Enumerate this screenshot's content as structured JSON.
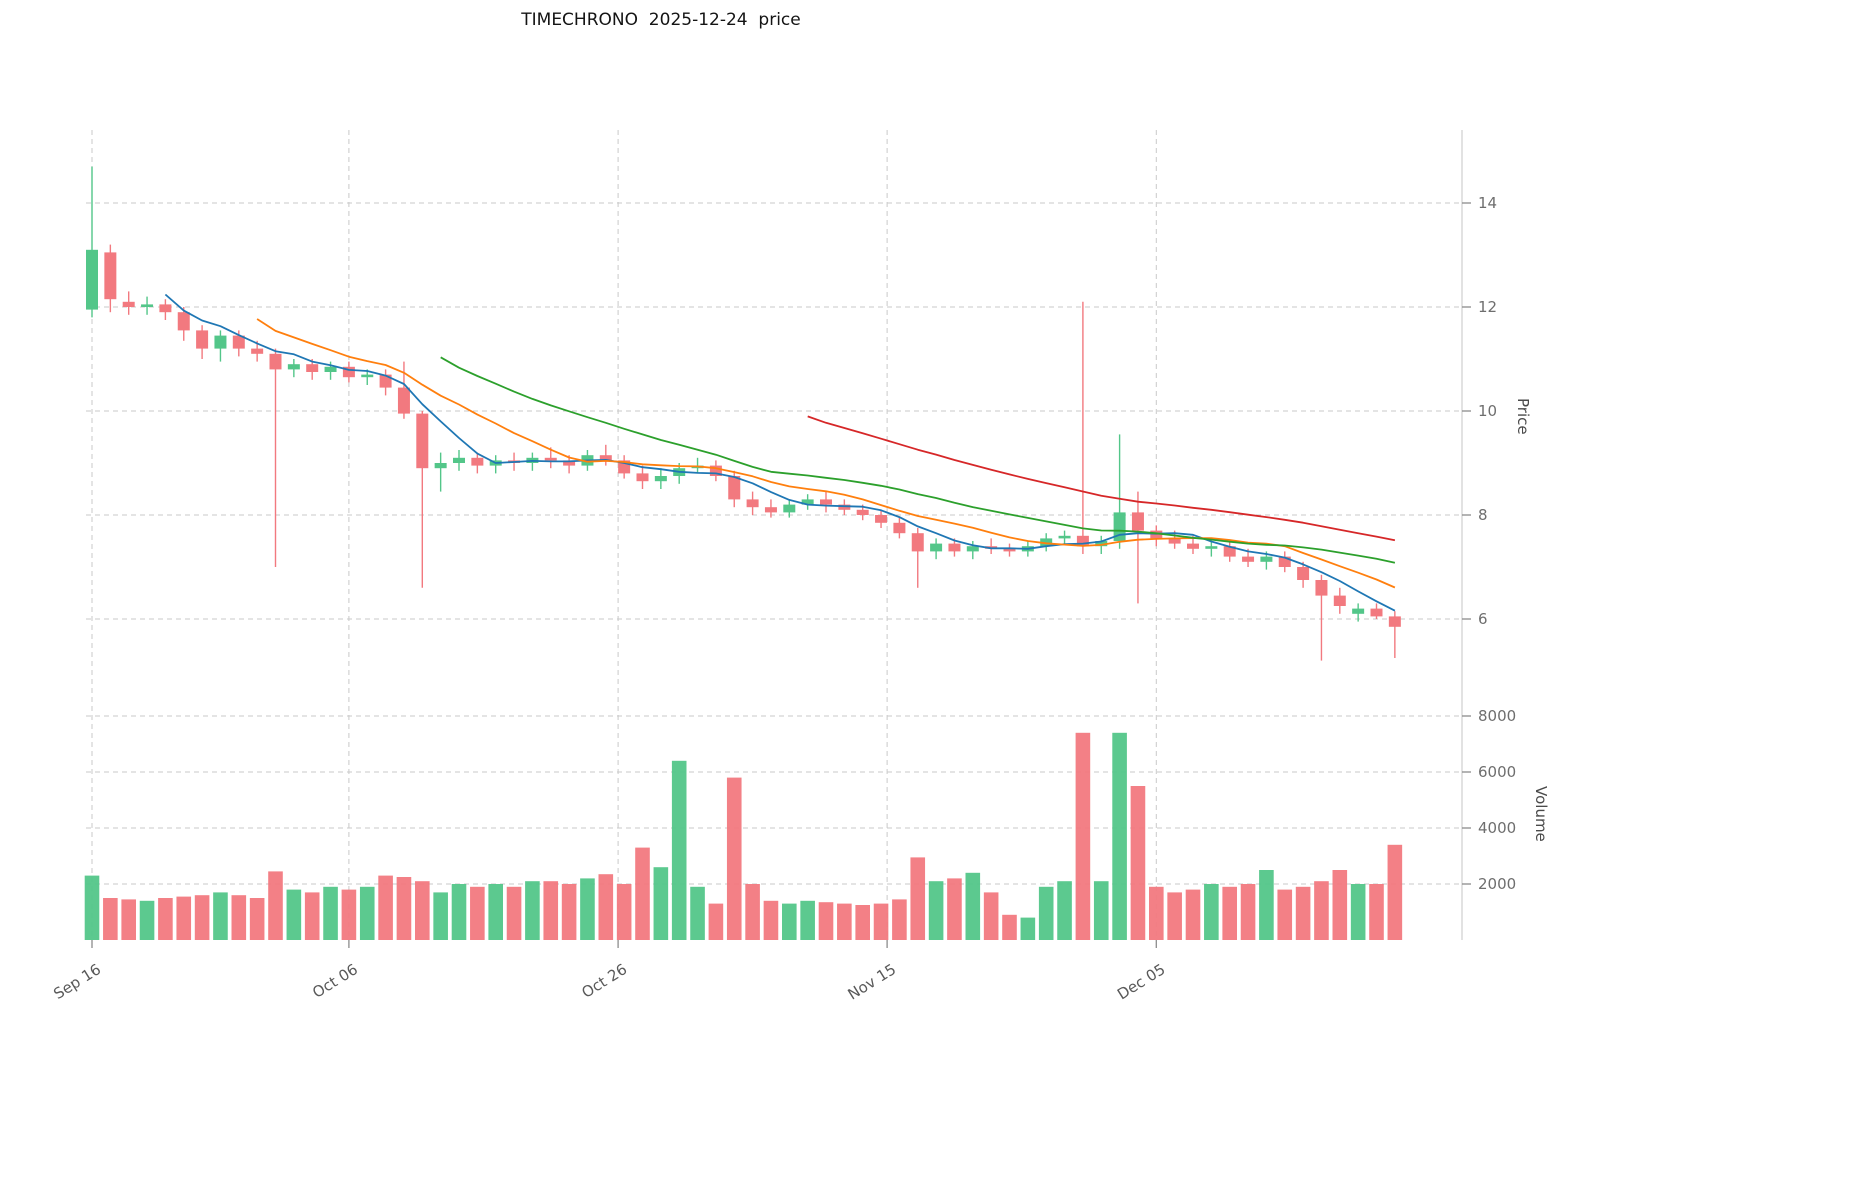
{
  "title": "TIMECHRONO  2025-12-24  price",
  "axes": {
    "price_label": "Price",
    "volume_label": "Volume"
  },
  "chart_data": {
    "type": "candlestick",
    "symbol": "TIMECHRONO",
    "as_of_date": "2025-12-24",
    "title": "TIMECHRONO  2025-12-24  price",
    "panels": [
      "price",
      "volume"
    ],
    "colors": {
      "up": "#53c689",
      "down": "#f2797f",
      "ma_short": "#1f77b4",
      "ma_mid": "#ff7f0e",
      "ma_long": "#2ca02c",
      "ma_longest": "#d62728"
    },
    "price_axis": {
      "ticks": [
        14,
        12,
        10,
        8,
        6
      ],
      "range": [
        4.5,
        15.4
      ]
    },
    "volume_axis": {
      "ticks": [
        8000,
        6000,
        4000,
        2000
      ],
      "range": [
        0,
        8400
      ]
    },
    "x_axis": {
      "ticks": [
        {
          "label": "Sep 16",
          "index": 0
        },
        {
          "label": "Oct 06",
          "index": 14
        },
        {
          "label": "Oct 26",
          "index": 28.67
        },
        {
          "label": "Nov 15",
          "index": 43.33
        },
        {
          "label": "Dec 05",
          "index": 58
        }
      ]
    },
    "moving_averages": [
      {
        "name": "MA5",
        "window": 5,
        "color": "#1f77b4"
      },
      {
        "name": "MA10",
        "window": 10,
        "color": "#ff7f0e"
      },
      {
        "name": "MA20",
        "window": 20,
        "color": "#2ca02c"
      },
      {
        "name": "MA40",
        "window": 40,
        "color": "#d62728"
      }
    ],
    "dates": [
      "2025-09-16",
      "2025-09-17",
      "2025-09-18",
      "2025-09-19",
      "2025-09-22",
      "2025-09-23",
      "2025-09-24",
      "2025-09-25",
      "2025-09-26",
      "2025-09-29",
      "2025-09-30",
      "2025-10-01",
      "2025-10-02",
      "2025-10-03",
      "2025-10-06",
      "2025-10-07",
      "2025-10-08",
      "2025-10-09",
      "2025-10-10",
      "2025-10-13",
      "2025-10-14",
      "2025-10-15",
      "2025-10-16",
      "2025-10-17",
      "2025-10-20",
      "2025-10-21",
      "2025-10-22",
      "2025-10-23",
      "2025-10-24",
      "2025-10-27",
      "2025-10-28",
      "2025-10-29",
      "2025-10-30",
      "2025-10-31",
      "2025-11-03",
      "2025-11-04",
      "2025-11-05",
      "2025-11-06",
      "2025-11-07",
      "2025-11-10",
      "2025-11-11",
      "2025-11-12",
      "2025-11-13",
      "2025-11-14",
      "2025-11-17",
      "2025-11-18",
      "2025-11-19",
      "2025-11-20",
      "2025-11-21",
      "2025-11-24",
      "2025-11-25",
      "2025-11-26",
      "2025-11-27",
      "2025-11-28",
      "2025-12-01",
      "2025-12-02",
      "2025-12-03",
      "2025-12-04",
      "2025-12-05",
      "2025-12-08",
      "2025-12-09",
      "2025-12-10",
      "2025-12-11",
      "2025-12-12",
      "2025-12-15",
      "2025-12-16",
      "2025-12-17",
      "2025-12-18",
      "2025-12-19",
      "2025-12-22",
      "2025-12-23",
      "2025-12-24"
    ],
    "open": [
      11.95,
      13.05,
      12.1,
      12.0,
      12.05,
      11.9,
      11.55,
      11.2,
      11.45,
      11.2,
      11.1,
      10.8,
      10.9,
      10.75,
      10.85,
      10.65,
      10.7,
      10.45,
      9.95,
      8.9,
      9.0,
      9.1,
      8.95,
      9.05,
      9.0,
      9.1,
      9.05,
      8.95,
      9.15,
      9.05,
      8.8,
      8.65,
      8.75,
      8.9,
      8.95,
      8.75,
      8.3,
      8.15,
      8.05,
      8.2,
      8.3,
      8.2,
      8.1,
      8.0,
      7.85,
      7.65,
      7.3,
      7.45,
      7.3,
      7.4,
      7.35,
      7.3,
      7.4,
      7.55,
      7.6,
      7.4,
      7.5,
      8.05,
      7.7,
      7.55,
      7.45,
      7.35,
      7.4,
      7.2,
      7.1,
      7.2,
      7.0,
      6.75,
      6.45,
      6.1,
      6.2,
      6.05
    ],
    "high": [
      14.7,
      13.2,
      12.3,
      12.2,
      12.15,
      12.0,
      11.65,
      11.55,
      11.55,
      11.35,
      11.2,
      11.0,
      11.0,
      10.95,
      10.95,
      10.8,
      10.8,
      10.95,
      10.0,
      9.2,
      9.25,
      9.2,
      9.15,
      9.2,
      9.2,
      9.3,
      9.15,
      9.25,
      9.35,
      9.15,
      8.95,
      8.9,
      9.0,
      9.1,
      9.05,
      8.85,
      8.45,
      8.3,
      8.3,
      8.4,
      8.45,
      8.3,
      8.2,
      8.1,
      7.95,
      7.75,
      7.55,
      7.55,
      7.5,
      7.55,
      7.45,
      7.5,
      7.65,
      7.7,
      12.1,
      7.6,
      9.55,
      8.45,
      7.8,
      7.7,
      7.6,
      7.5,
      7.5,
      7.35,
      7.3,
      7.3,
      7.1,
      6.85,
      6.6,
      6.3,
      6.3,
      6.15
    ],
    "low": [
      11.8,
      11.9,
      11.85,
      11.85,
      11.75,
      11.35,
      11.0,
      10.95,
      11.05,
      10.95,
      7.0,
      10.65,
      10.6,
      10.6,
      10.55,
      10.5,
      10.3,
      9.85,
      6.6,
      8.45,
      8.85,
      8.8,
      8.8,
      8.85,
      8.85,
      8.9,
      8.8,
      8.85,
      8.95,
      8.7,
      8.5,
      8.5,
      8.6,
      8.8,
      8.65,
      8.15,
      8.0,
      7.95,
      7.95,
      8.1,
      8.05,
      8.0,
      7.9,
      7.75,
      7.55,
      6.6,
      7.15,
      7.2,
      7.15,
      7.25,
      7.2,
      7.2,
      7.3,
      7.45,
      7.25,
      7.25,
      7.35,
      6.3,
      7.4,
      7.35,
      7.25,
      7.2,
      7.1,
      7.0,
      6.95,
      6.9,
      6.6,
      5.2,
      6.1,
      5.95,
      6.0,
      5.25
    ],
    "close": [
      13.1,
      12.15,
      12.0,
      12.05,
      11.9,
      11.55,
      11.2,
      11.45,
      11.2,
      11.1,
      10.8,
      10.9,
      10.75,
      10.85,
      10.65,
      10.7,
      10.45,
      9.95,
      8.9,
      9.0,
      9.1,
      8.95,
      9.05,
      9.0,
      9.1,
      9.05,
      8.95,
      9.15,
      9.05,
      8.8,
      8.65,
      8.75,
      8.9,
      8.95,
      8.75,
      8.3,
      8.15,
      8.05,
      8.2,
      8.3,
      8.2,
      8.1,
      8.0,
      7.85,
      7.65,
      7.3,
      7.45,
      7.3,
      7.4,
      7.35,
      7.3,
      7.4,
      7.55,
      7.6,
      7.4,
      7.5,
      8.05,
      7.7,
      7.55,
      7.45,
      7.35,
      7.4,
      7.2,
      7.1,
      7.2,
      7.0,
      6.75,
      6.45,
      6.25,
      6.2,
      6.05,
      5.85
    ],
    "volume": [
      2300,
      1500,
      1450,
      1400,
      1500,
      1550,
      1600,
      1700,
      1600,
      1500,
      2450,
      1800,
      1700,
      1900,
      1800,
      1900,
      2300,
      2250,
      2100,
      1700,
      2000,
      1900,
      2000,
      1900,
      2100,
      2100,
      2000,
      2200,
      2350,
      2000,
      3300,
      2600,
      6400,
      1900,
      1300,
      5800,
      2000,
      1400,
      1300,
      1400,
      1350,
      1300,
      1250,
      1300,
      1450,
      2950,
      2100,
      2200,
      2400,
      1700,
      900,
      800,
      1900,
      2100,
      7400,
      2100,
      7400,
      5500,
      1900,
      1700,
      1800,
      2000,
      1900,
      2000,
      2500,
      1800,
      1900,
      2100,
      2500,
      2000,
      2000,
      3400
    ]
  }
}
